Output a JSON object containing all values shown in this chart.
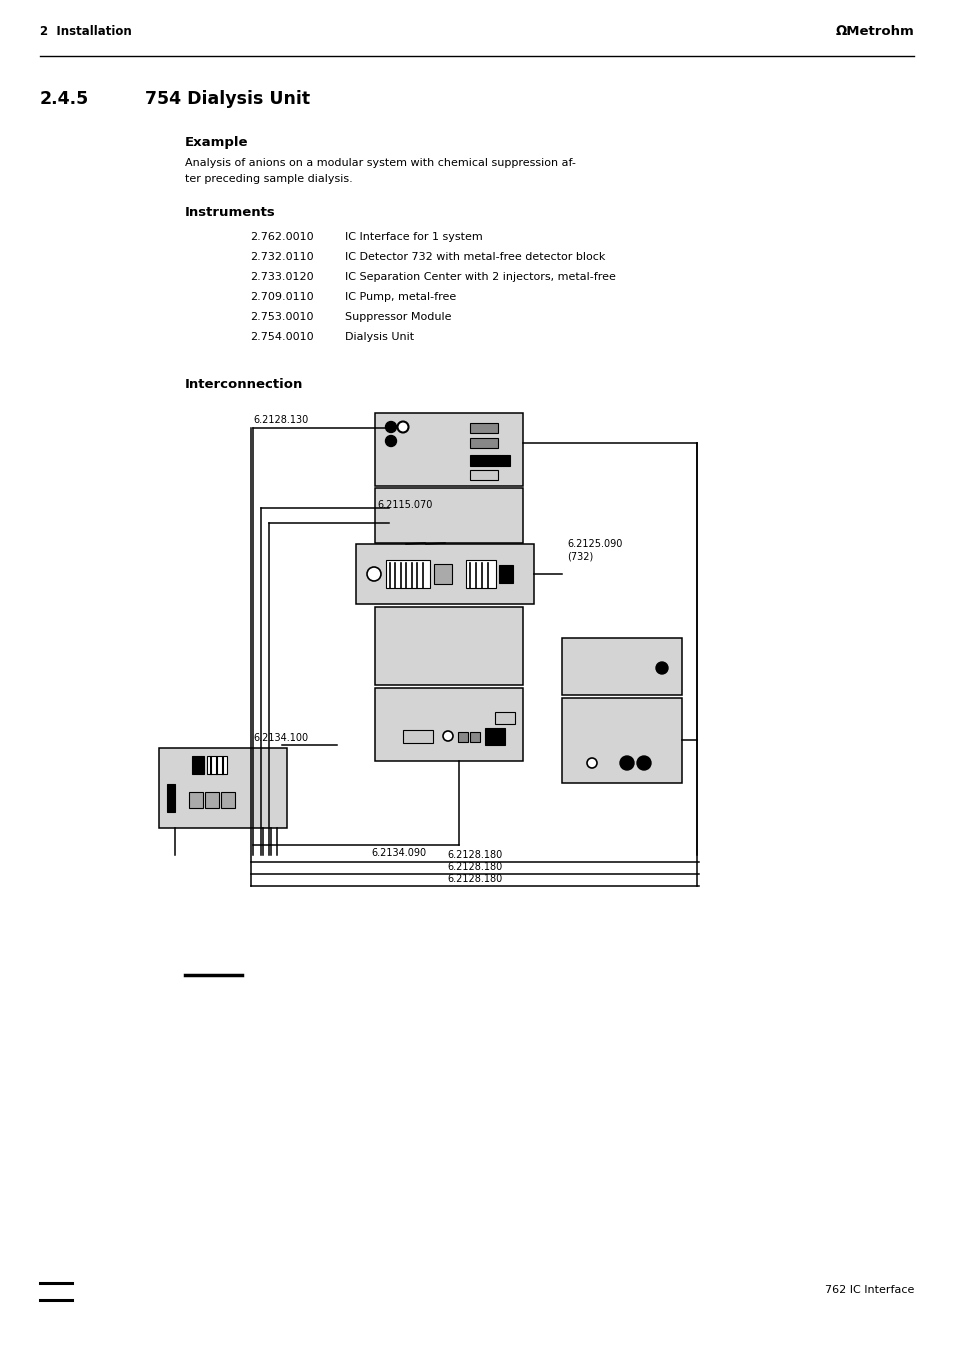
{
  "page_bg": "#ffffff",
  "header_text": "2  Installation",
  "header_right": "ΩMetrohm",
  "section_title": "2.4.5",
  "section_title2": "754 Dialysis Unit",
  "sub_title1": "Example",
  "example_text1": "Analysis of anions on a modular system with chemical suppression af-",
  "example_text2": "ter preceding sample dialysis.",
  "sub_title2": "Instruments",
  "instruments": [
    [
      "2.762.0010",
      "IC Interface for 1 system"
    ],
    [
      "2.732.0110",
      "IC Detector 732 with metal-free detector block"
    ],
    [
      "2.733.0120",
      "IC Separation Center with 2 injectors, metal-free"
    ],
    [
      "2.709.0110",
      "IC Pump, metal-free"
    ],
    [
      "2.753.0010",
      "Suppressor Module"
    ],
    [
      "2.754.0010",
      "Dialysis Unit"
    ]
  ],
  "sub_title3": "Interconnection",
  "footer_right": "762 IC Interface",
  "box_color": "#d4d4d4",
  "wire_color": "#000000"
}
